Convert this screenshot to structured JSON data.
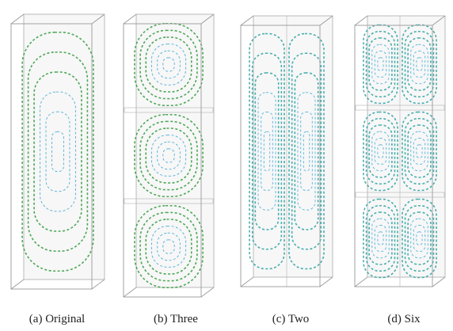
{
  "figure": {
    "captions": [
      "(a) Original",
      "(b) Three",
      "(c) Two",
      "(d) Six"
    ]
  }
}
